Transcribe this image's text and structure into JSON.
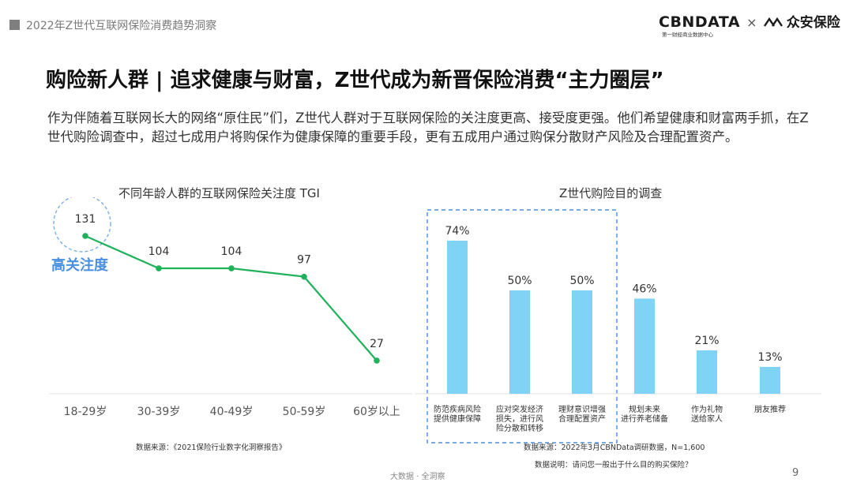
{
  "header": {
    "report_title": "2022年Z世代互联网保险消费趋势洞察",
    "logo_text": "CBNDATA",
    "logo_separator": "×",
    "partner_text": "众安保险",
    "logo_subtitle": "第一财经商业数据中心"
  },
  "main_title": "购险新人群 | 追求健康与财富，Z世代成为新晋保险消费“主力圈层”",
  "intro": "作为伴随着互联网长大的网络“原住民”们，Z世代人群对于互联网保险的关注度更高、接受度更强。他们希望健康和财富两手抓，在Z世代购险调查中，超过七成用户将购保作为健康保障的重要手段，更有五成用户通过购保分散财产风险及合理配置资产。",
  "chart_data": [
    {
      "type": "line",
      "title": "不同年龄人群的互联网保险关注度 TGI",
      "categories": [
        "18-29岁",
        "30-39岁",
        "40-49岁",
        "50-59岁",
        "60岁以上"
      ],
      "values": [
        131,
        104,
        104,
        97,
        27
      ],
      "data_labels": [
        "131",
        "104",
        "104",
        "97",
        "27"
      ],
      "annotation": "高关注度",
      "line_color": "#1fb25a",
      "annotation_color": "#4a8fe0",
      "source": "数据来源：《2021保险行业数字化洞察报告》"
    },
    {
      "type": "bar",
      "title": "Z世代购险目的调查",
      "categories": [
        [
          "防范疾病风险",
          "提供健康保障"
        ],
        [
          "应对突发经济",
          "损失，进行风",
          "险分散和转移"
        ],
        [
          "理财意识增强",
          "合理配置资产"
        ],
        [
          "规划未来",
          "进行养老储备"
        ],
        [
          "作为礼物",
          "送给家人"
        ],
        [
          "朋友推荐"
        ]
      ],
      "values": [
        74,
        50,
        50,
        46,
        21,
        13
      ],
      "data_labels": [
        "74%",
        "50%",
        "50%",
        "46%",
        "21%",
        "13%"
      ],
      "bar_color": "#7fd3f5",
      "highlight_color": "#4a8fe0",
      "source": "数据来源：2022年3月CBNData调研数据，N=1,600",
      "note": "数据说明：请问您一般出于什么目的购买保险？"
    }
  ],
  "footer": {
    "center_text": "大数据 · 全洞察",
    "page_number": "9"
  }
}
